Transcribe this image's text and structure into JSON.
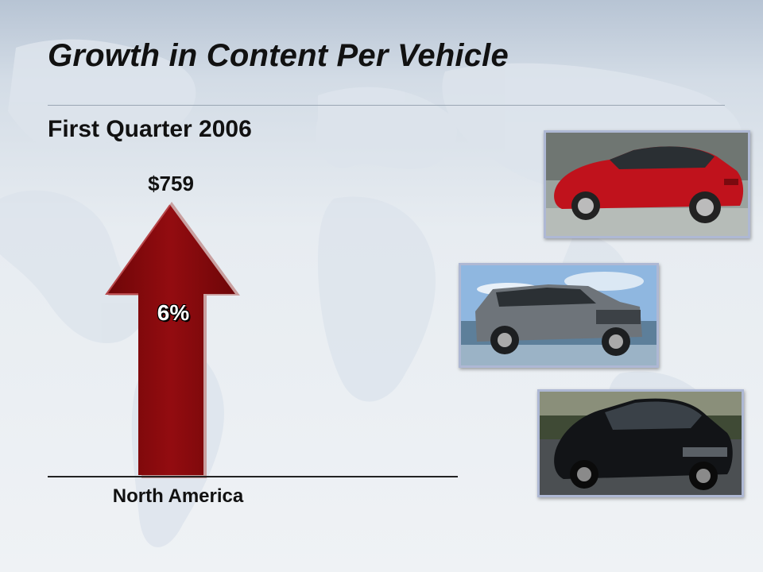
{
  "slide": {
    "title": "Growth in Content Per Vehicle",
    "subtitle": "First Quarter 2006"
  },
  "chart": {
    "value_label": "$759",
    "growth_label": "6%",
    "category": "North America"
  },
  "colors": {
    "arrow_fill": "#8b0a0d",
    "arrow_edge": "#c9a0a0",
    "title_text": "#111111"
  },
  "images": [
    {
      "name": "red-sedan-photo"
    },
    {
      "name": "gray-suv-photo"
    },
    {
      "name": "black-sedan-photo"
    }
  ]
}
